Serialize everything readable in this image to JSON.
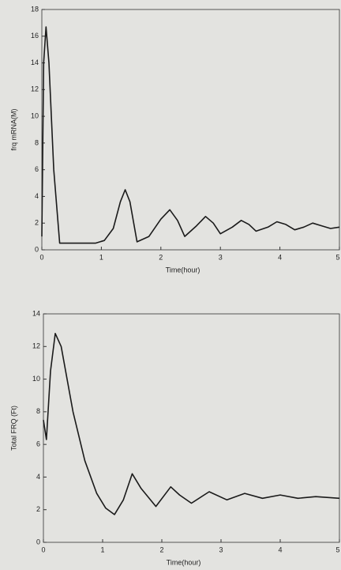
{
  "chart_data": [
    {
      "type": "line",
      "ylabel": "frq mRNA(M)",
      "xlabel": "Time(hour)",
      "xlim": [
        0,
        5
      ],
      "xticks": [
        0,
        1,
        2,
        3,
        4,
        5
      ],
      "ylim": [
        0,
        18
      ],
      "yticks": [
        0,
        2,
        4,
        6,
        8,
        10,
        12,
        14,
        16,
        18
      ],
      "series": [
        {
          "color": "#1a1a1a",
          "x": [
            0,
            0.03,
            0.07,
            0.12,
            0.2,
            0.3,
            0.6,
            0.9,
            1.05,
            1.2,
            1.32,
            1.4,
            1.48,
            1.6,
            1.8,
            2.0,
            2.15,
            2.28,
            2.4,
            2.6,
            2.75,
            2.88,
            3.0,
            3.2,
            3.35,
            3.48,
            3.6,
            3.8,
            3.95,
            4.1,
            4.25,
            4.4,
            4.55,
            4.7,
            4.85,
            5.0
          ],
          "values": [
            1,
            14,
            16.7,
            14,
            6,
            0.5,
            0.5,
            0.5,
            0.7,
            1.6,
            3.6,
            4.5,
            3.6,
            0.6,
            1.0,
            2.3,
            3.0,
            2.2,
            1.0,
            1.8,
            2.5,
            2.0,
            1.2,
            1.7,
            2.2,
            1.9,
            1.4,
            1.7,
            2.1,
            1.9,
            1.5,
            1.7,
            2.0,
            1.8,
            1.6,
            1.7
          ]
        }
      ]
    },
    {
      "type": "line",
      "ylabel": "Total FRQ (Ft)",
      "xlabel": "Time(hour)",
      "xlim": [
        0,
        5
      ],
      "xticks": [
        0,
        1,
        2,
        3,
        4,
        5
      ],
      "ylim": [
        0,
        14
      ],
      "yticks": [
        0,
        2,
        4,
        6,
        8,
        10,
        12,
        14
      ],
      "series": [
        {
          "color": "#1a1a1a",
          "x": [
            0,
            0.05,
            0.12,
            0.2,
            0.3,
            0.5,
            0.7,
            0.9,
            1.05,
            1.2,
            1.35,
            1.5,
            1.65,
            1.9,
            2.15,
            2.3,
            2.5,
            2.8,
            3.1,
            3.4,
            3.7,
            4.0,
            4.3,
            4.6,
            5.0
          ],
          "values": [
            7.5,
            6.3,
            10.5,
            12.8,
            12,
            8,
            5,
            3,
            2.1,
            1.7,
            2.6,
            4.2,
            3.3,
            2.2,
            3.4,
            2.9,
            2.4,
            3.1,
            2.6,
            3.0,
            2.7,
            2.9,
            2.7,
            2.8,
            2.7
          ]
        }
      ]
    }
  ]
}
